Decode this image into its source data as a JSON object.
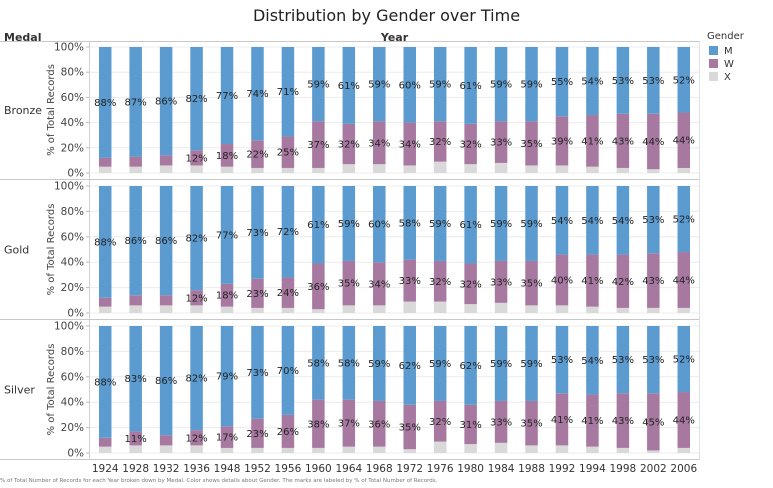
{
  "chart_data": {
    "type": "bar",
    "stacked": true,
    "title": "Distribution by Gender over Time",
    "row_header": "Medal",
    "column_header": "Year",
    "ylabel": "% of Total Records",
    "ylim": [
      0,
      100
    ],
    "yticks": [
      "0%",
      "20%",
      "40%",
      "60%",
      "80%",
      "100%"
    ],
    "legend": {
      "title": "Gender",
      "position": "right",
      "entries": [
        {
          "name": "M",
          "color": "#5b9bcf"
        },
        {
          "name": "W",
          "color": "#a879a0"
        },
        {
          "name": "X",
          "color": "#d9d9d9"
        }
      ]
    },
    "categories": [
      "1924",
      "1928",
      "1932",
      "1936",
      "1948",
      "1952",
      "1956",
      "1960",
      "1964",
      "1968",
      "1972",
      "1976",
      "1980",
      "1984",
      "1988",
      "1992",
      "1994",
      "1998",
      "2002",
      "2006"
    ],
    "panels": [
      {
        "medal": "Bronze",
        "series": [
          {
            "name": "M",
            "values": [
              88,
              87,
              86,
              82,
              77,
              74,
              71,
              59,
              61,
              59,
              60,
              59,
              61,
              59,
              59,
              55,
              54,
              53,
              53,
              52
            ]
          },
          {
            "name": "W",
            "values": [
              7,
              8,
              8,
              12,
              18,
              22,
              25,
              37,
              32,
              34,
              34,
              32,
              32,
              33,
              35,
              39,
              41,
              43,
              44,
              44
            ]
          },
          {
            "name": "X",
            "values": [
              5,
              5,
              6,
              6,
              5,
              4,
              4,
              4,
              7,
              7,
              6,
              9,
              7,
              8,
              6,
              6,
              5,
              4,
              3,
              4
            ]
          }
        ]
      },
      {
        "medal": "Gold",
        "series": [
          {
            "name": "M",
            "values": [
              88,
              86,
              86,
              82,
              77,
              73,
              72,
              61,
              59,
              60,
              58,
              59,
              61,
              59,
              59,
              54,
              54,
              54,
              53,
              52
            ]
          },
          {
            "name": "W",
            "values": [
              7,
              8,
              8,
              12,
              18,
              23,
              24,
              36,
              35,
              34,
              33,
              32,
              32,
              33,
              35,
              40,
              41,
              42,
              43,
              44
            ]
          },
          {
            "name": "X",
            "values": [
              5,
              6,
              6,
              6,
              5,
              4,
              4,
              3,
              6,
              6,
              9,
              9,
              7,
              8,
              6,
              6,
              5,
              4,
              4,
              4
            ]
          }
        ]
      },
      {
        "medal": "Silver",
        "series": [
          {
            "name": "M",
            "values": [
              88,
              83,
              86,
              82,
              79,
              73,
              70,
              58,
              58,
              59,
              62,
              59,
              62,
              59,
              59,
              53,
              54,
              53,
              53,
              52
            ]
          },
          {
            "name": "W",
            "values": [
              7,
              11,
              8,
              12,
              17,
              23,
              26,
              38,
              37,
              36,
              35,
              32,
              31,
              33,
              35,
              41,
              41,
              43,
              45,
              44
            ]
          },
          {
            "name": "X",
            "values": [
              5,
              6,
              6,
              6,
              4,
              4,
              4,
              4,
              5,
              5,
              3,
              9,
              7,
              8,
              6,
              6,
              5,
              4,
              2,
              4
            ]
          }
        ]
      }
    ],
    "labeled_series": [
      "M",
      "W"
    ],
    "label_min": 10
  },
  "footnote": "% of Total Number of Records for each Year broken down by Medal.  Color shows details about Gender.  The marks are labeled by % of Total Number of Records."
}
